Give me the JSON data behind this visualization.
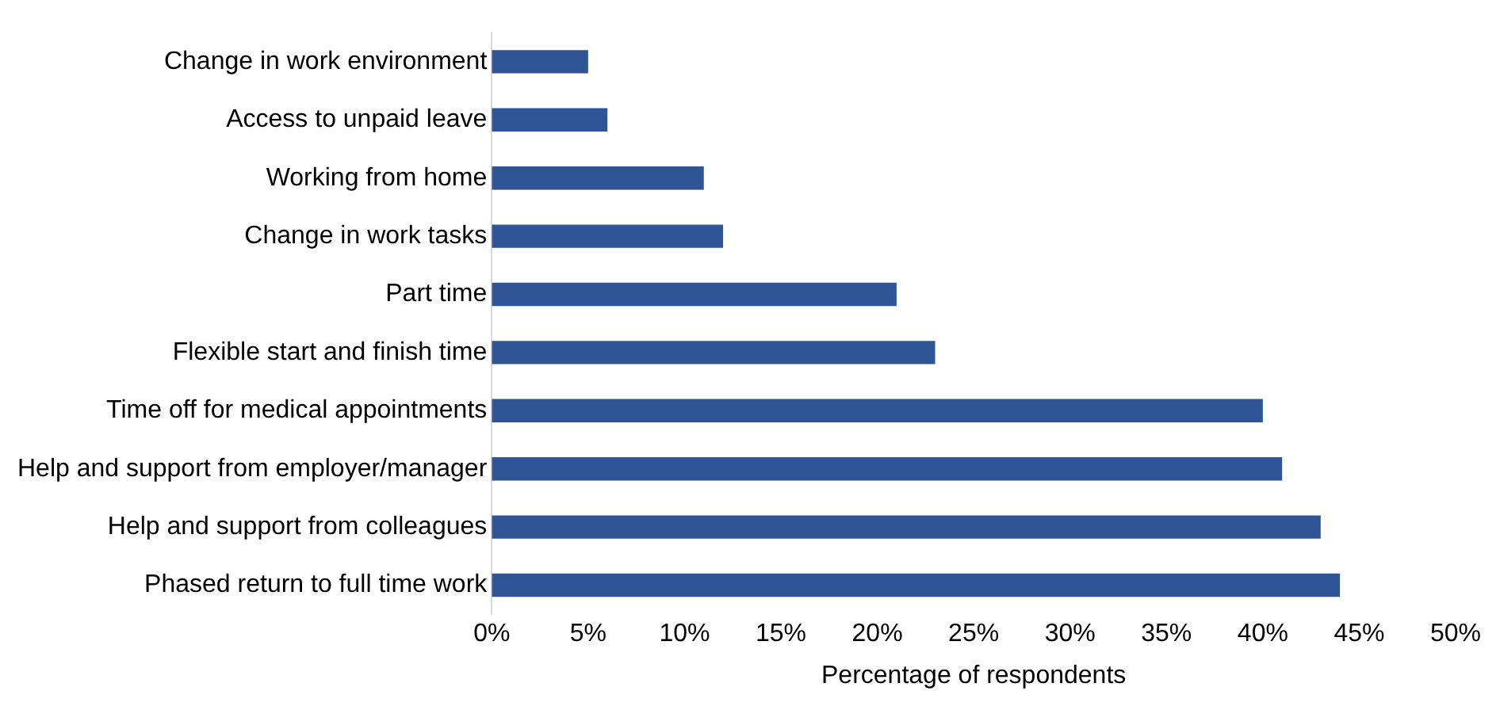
{
  "chart_data": {
    "type": "bar",
    "orientation": "horizontal",
    "xlabel": "Percentage of respondents",
    "categories": [
      "Change in work environment",
      "Access to unpaid leave",
      "Working from home",
      "Change in work tasks",
      "Part time",
      "Flexible start and finish time",
      "Time off for medical appointments",
      "Help and support from employer/manager",
      "Help and support from colleagues",
      "Phased return to full time work"
    ],
    "values": [
      5,
      6,
      11,
      12,
      21,
      23,
      40,
      41,
      43,
      44
    ],
    "color": "#2f5597",
    "xlim": [
      0,
      50
    ],
    "xticks": [
      {
        "value": 0,
        "label": "0%"
      },
      {
        "value": 5,
        "label": "5%"
      },
      {
        "value": 10,
        "label": "10%"
      },
      {
        "value": 15,
        "label": "15%"
      },
      {
        "value": 20,
        "label": "20%"
      },
      {
        "value": 25,
        "label": "25%"
      },
      {
        "value": 30,
        "label": "30%"
      },
      {
        "value": 35,
        "label": "35%"
      },
      {
        "value": 40,
        "label": "40%"
      },
      {
        "value": 45,
        "label": "45%"
      },
      {
        "value": 50,
        "label": "50%"
      }
    ],
    "grid": false,
    "legend": false
  }
}
